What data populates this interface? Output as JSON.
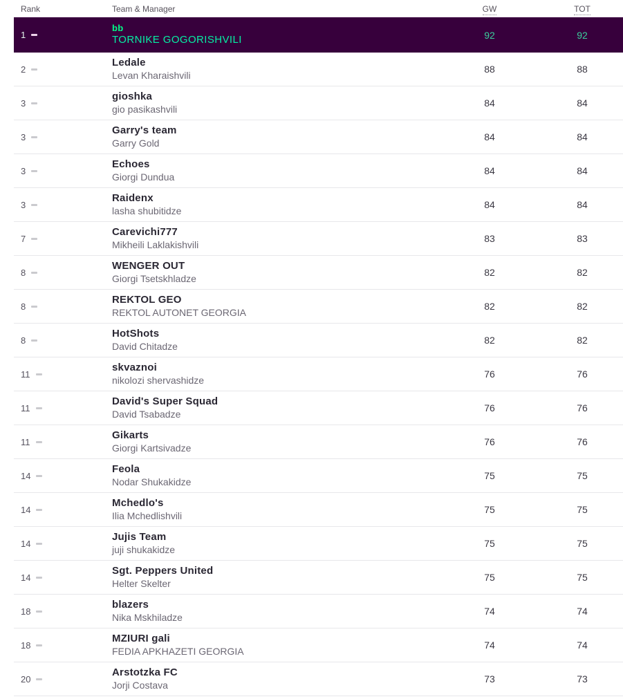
{
  "colors": {
    "highlight_row_bg": "#37003c",
    "team_green": "#00ff87",
    "manager_green": "#05f0a5",
    "points_green": "#3bcf9c",
    "header_text": "#55505a",
    "row_border": "#e7e7ea"
  },
  "table": {
    "columns": {
      "rank": "Rank",
      "team": "Team & Manager",
      "gw": "GW",
      "tot": "TOT"
    },
    "rows": [
      {
        "rank": "1",
        "movement": "same",
        "team": "bb",
        "manager": "TORNIKE GOGORISHVILI",
        "gw": "92",
        "tot": "92",
        "highlight": true
      },
      {
        "rank": "2",
        "movement": "same",
        "team": "Ledale",
        "manager": "Levan Kharaishvili",
        "gw": "88",
        "tot": "88",
        "highlight": false
      },
      {
        "rank": "3",
        "movement": "same",
        "team": "gioshka",
        "manager": "gio pasikashvili",
        "gw": "84",
        "tot": "84",
        "highlight": false
      },
      {
        "rank": "3",
        "movement": "same",
        "team": "Garry's team",
        "manager": "Garry Gold",
        "gw": "84",
        "tot": "84",
        "highlight": false
      },
      {
        "rank": "3",
        "movement": "same",
        "team": "Echoes",
        "manager": "Giorgi Dundua",
        "gw": "84",
        "tot": "84",
        "highlight": false
      },
      {
        "rank": "3",
        "movement": "same",
        "team": "Raidenx",
        "manager": "lasha shubitidze",
        "gw": "84",
        "tot": "84",
        "highlight": false
      },
      {
        "rank": "7",
        "movement": "same",
        "team": "Carevichi777",
        "manager": "Mikheili Laklakishvili",
        "gw": "83",
        "tot": "83",
        "highlight": false
      },
      {
        "rank": "8",
        "movement": "same",
        "team": "WENGER OUT",
        "manager": "Giorgi Tsetskhladze",
        "gw": "82",
        "tot": "82",
        "highlight": false
      },
      {
        "rank": "8",
        "movement": "same",
        "team": "REKTOL GEO",
        "manager": "REKTOL AUTONET GEORGIA",
        "gw": "82",
        "tot": "82",
        "highlight": false
      },
      {
        "rank": "8",
        "movement": "same",
        "team": "HotShots",
        "manager": "David Chitadze",
        "gw": "82",
        "tot": "82",
        "highlight": false
      },
      {
        "rank": "11",
        "movement": "same",
        "team": "skvaznoi",
        "manager": "nikolozi shervashidze",
        "gw": "76",
        "tot": "76",
        "highlight": false
      },
      {
        "rank": "11",
        "movement": "same",
        "team": "David's Super Squad",
        "manager": "David Tsabadze",
        "gw": "76",
        "tot": "76",
        "highlight": false
      },
      {
        "rank": "11",
        "movement": "same",
        "team": "Gikarts",
        "manager": "Giorgi Kartsivadze",
        "gw": "76",
        "tot": "76",
        "highlight": false
      },
      {
        "rank": "14",
        "movement": "same",
        "team": "Feola",
        "manager": "Nodar Shukakidze",
        "gw": "75",
        "tot": "75",
        "highlight": false
      },
      {
        "rank": "14",
        "movement": "same",
        "team": "Mchedlo's",
        "manager": "Ilia Mchedlishvili",
        "gw": "75",
        "tot": "75",
        "highlight": false
      },
      {
        "rank": "14",
        "movement": "same",
        "team": "Jujis Team",
        "manager": "juji shukakidze",
        "gw": "75",
        "tot": "75",
        "highlight": false
      },
      {
        "rank": "14",
        "movement": "same",
        "team": "Sgt. Peppers United",
        "manager": "Helter Skelter",
        "gw": "75",
        "tot": "75",
        "highlight": false
      },
      {
        "rank": "18",
        "movement": "same",
        "team": "blazers",
        "manager": "Nika Mskhiladze",
        "gw": "74",
        "tot": "74",
        "highlight": false
      },
      {
        "rank": "18",
        "movement": "same",
        "team": "MZIURI gali",
        "manager": "FEDIA APKHAZETI GEORGIA",
        "gw": "74",
        "tot": "74",
        "highlight": false
      },
      {
        "rank": "20",
        "movement": "same",
        "team": "Arstotzka FC",
        "manager": "Jorji Costava",
        "gw": "73",
        "tot": "73",
        "highlight": false
      }
    ]
  }
}
